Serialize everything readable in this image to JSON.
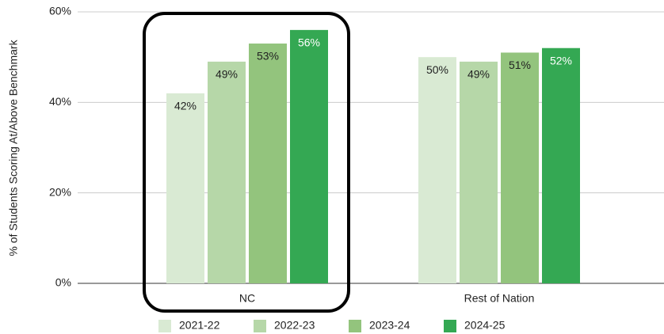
{
  "chart_data": {
    "type": "bar",
    "y_label": "% of Students Scoring At/Above Benchmark",
    "categories": [
      "NC",
      "Rest of Nation"
    ],
    "series": [
      {
        "name": "2021-22",
        "color": "#d9ead3",
        "values": [
          42,
          50
        ],
        "value_labels": [
          "42%",
          "50%"
        ]
      },
      {
        "name": "2022-23",
        "color": "#b6d7a8",
        "values": [
          49,
          49
        ],
        "value_labels": [
          "49%",
          "49%"
        ]
      },
      {
        "name": "2023-24",
        "color": "#93c47d",
        "values": [
          53,
          51
        ],
        "value_labels": [
          "53%",
          "51%"
        ]
      },
      {
        "name": "2024-25",
        "color": "#34a853",
        "values": [
          56,
          52
        ],
        "value_labels": [
          "56%",
          "52%"
        ]
      }
    ],
    "ylim": [
      0,
      60
    ],
    "yticks": [
      {
        "value": 0,
        "label": "0%"
      },
      {
        "value": 20,
        "label": "20%"
      },
      {
        "value": 40,
        "label": "40%"
      },
      {
        "value": 60,
        "label": "60%"
      }
    ],
    "grid": true,
    "legend": "bottom"
  }
}
